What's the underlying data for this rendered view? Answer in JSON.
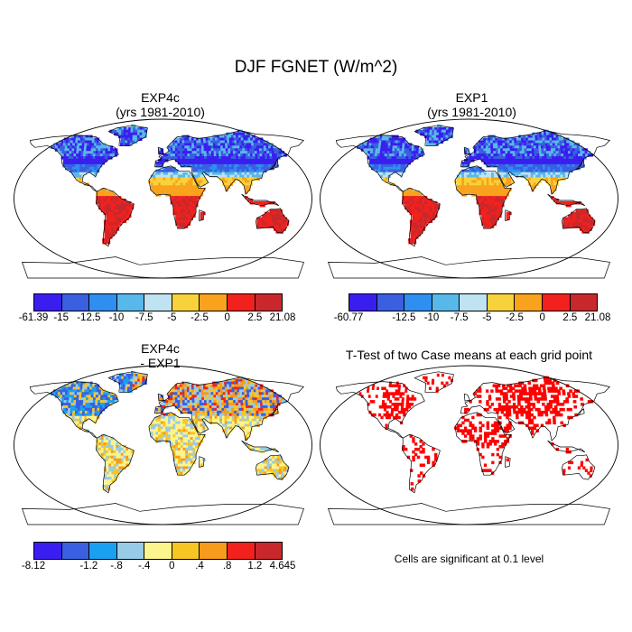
{
  "title": "DJF FGNET (W/m^2)",
  "panels": [
    {
      "id": "exp4c",
      "title_line1": "EXP4c",
      "title_line2": "(yrs 1981-2010)",
      "field": "full",
      "colorbar": {
        "colors": [
          "#3a1ef0",
          "#3a5fe0",
          "#2e8ff0",
          "#58b8ea",
          "#bfe3f0",
          "#f8d23a",
          "#f8a21e",
          "#f2211e",
          "#c8282b"
        ],
        "labels": [
          "-61.39",
          "-15",
          "-12.5",
          "-10",
          "-7.5",
          "-5",
          "-2.5",
          "0",
          "2.5",
          "21.08"
        ]
      }
    },
    {
      "id": "exp1",
      "title_line1": "EXP1",
      "title_line2": "(yrs 1981-2010)",
      "field": "full",
      "colorbar": {
        "colors": [
          "#3a1ef0",
          "#3a5fe0",
          "#2e8ff0",
          "#58b8ea",
          "#bfe3f0",
          "#f8d23a",
          "#f8a21e",
          "#f2211e",
          "#c8282b"
        ],
        "labels": [
          "-60.77",
          "",
          "-12.5",
          "-10",
          "-7.5",
          "-5",
          "-2.5",
          "0",
          "2.5",
          "21.08"
        ]
      }
    },
    {
      "id": "diff",
      "title_line1": "EXP4c",
      "title_line2": "- EXP1",
      "field": "diff",
      "colorbar": {
        "colors": [
          "#3a1ef0",
          "#3a5fe0",
          "#1aa0f0",
          "#98cbe6",
          "#fcf48c",
          "#f8c624",
          "#f89a1c",
          "#f2211e",
          "#c8282b"
        ],
        "labels": [
          "-8.12",
          "",
          "-1.2",
          "-.8",
          "-.4",
          "0",
          ".4",
          ".8",
          "1.2",
          "4.645"
        ]
      }
    },
    {
      "id": "ttest",
      "title_line1": "T-Test of two Case means at each grid point",
      "field": "ttest",
      "footnote": "Cells are significant at 0.1 level"
    }
  ],
  "colors": {
    "frame": "#000000",
    "significant": "#ff0000",
    "land_default": "#ffffff"
  }
}
